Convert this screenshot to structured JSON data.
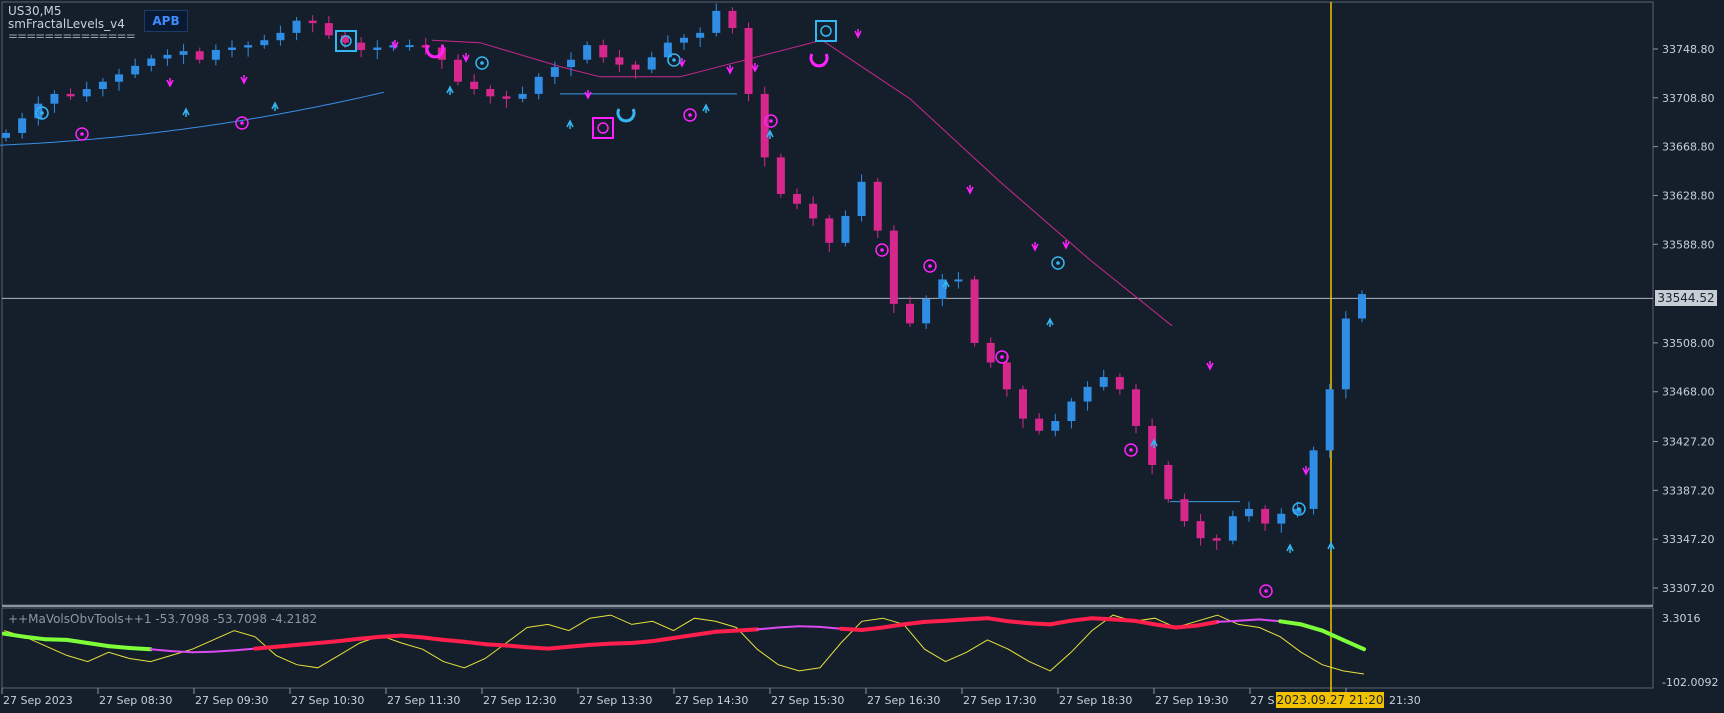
{
  "header": {
    "symbol": "US30,M5",
    "indicator": "smFractalLevels_v4",
    "dashes": "==============",
    "badge": "APB"
  },
  "subwindow": {
    "title": "++MaVolsObvTools++1 -53.7098 -53.7098 -4.2182",
    "axis_top": "3.3016",
    "axis_bottom": "-102.0092"
  },
  "crosshair": {
    "price_label": "33544.52",
    "time_label": "2023.09.27 21:20"
  },
  "colors": {
    "bull": "#2f8de4",
    "bear": "#d6288c",
    "magenta": "#ff22ff",
    "cyan": "#34b6f0",
    "crosshair": "#f2c200"
  },
  "chart_data": {
    "type": "candlestick",
    "symbol": "US30",
    "timeframe": "M5",
    "y_ticks": [
      "33748.80",
      "33708.80",
      "33668.80",
      "33628.80",
      "33588.80",
      "33544.52",
      "33508.00",
      "33468.00",
      "33427.20",
      "33387.20",
      "33347.20",
      "33307.20"
    ],
    "x_ticks": [
      "27 Sep 2023",
      "27 Sep 08:30",
      "27 Sep 09:30",
      "27 Sep 10:30",
      "27 Sep 11:30",
      "27 Sep 12:30",
      "27 Sep 13:30",
      "27 Sep 14:30",
      "27 Sep 15:30",
      "27 Sep 16:30",
      "27 Sep 17:30",
      "27 Sep 18:30",
      "27 Sep 19:30",
      "27 S",
      "21:30"
    ],
    "ylim": [
      33290,
      33778
    ],
    "close_path": [
      33680,
      33692,
      33704,
      33712,
      33710,
      33716,
      33722,
      33728,
      33735,
      33741,
      33744,
      33747,
      33740,
      33748,
      33750,
      33752,
      33756,
      33762,
      33772,
      33770,
      33760,
      33754,
      33748,
      33750,
      33752,
      33752,
      33750,
      33740,
      33722,
      33716,
      33710,
      33708,
      33712,
      33726,
      33734,
      33740,
      33752,
      33742,
      33736,
      33732,
      33742,
      33754,
      33758,
      33762,
      33780,
      33766,
      33712,
      33660,
      33630,
      33622,
      33610,
      33590,
      33612,
      33640,
      33600,
      33540,
      33524,
      33544,
      33560,
      33560,
      33508,
      33492,
      33470,
      33446,
      33436,
      33444,
      33460,
      33472,
      33480,
      33470,
      33440,
      33408,
      33380,
      33362,
      33348,
      33346,
      33366,
      33372,
      33360,
      33368,
      33372,
      33420,
      33470,
      33528,
      33548
    ],
    "slow_ma": {
      "x_range": [
        0,
        387
      ],
      "y_range": [
        33670,
        33714
      ],
      "color": "#3a8ee6"
    },
    "fractal_ma": {
      "points": [
        [
          432,
          33756
        ],
        [
          480,
          33754
        ],
        [
          562,
          33734
        ],
        [
          600,
          33726
        ],
        [
          680,
          33726
        ],
        [
          822,
          33756
        ],
        [
          910,
          33708
        ],
        [
          1000,
          33640
        ],
        [
          1090,
          33576
        ],
        [
          1172,
          33522
        ]
      ],
      "color": "#c7288c"
    },
    "support_levels": [
      {
        "from": 560,
        "to": 737,
        "price": 33712
      },
      {
        "from": 1170,
        "to": 1240,
        "price": 33378
      }
    ],
    "ind_thick": [
      0.65,
      0.6,
      0.56,
      0.55,
      0.5,
      0.45,
      0.42,
      0.4,
      0.37,
      0.35,
      0.36,
      0.38,
      0.41,
      0.44,
      0.47,
      0.5,
      0.53,
      0.57,
      0.6,
      0.62,
      0.59,
      0.55,
      0.52,
      0.48,
      0.46,
      0.43,
      0.41,
      0.44,
      0.47,
      0.49,
      0.5,
      0.53,
      0.58,
      0.63,
      0.68,
      0.7,
      0.72,
      0.75,
      0.77,
      0.76,
      0.73,
      0.71,
      0.75,
      0.8,
      0.84,
      0.86,
      0.88,
      0.9,
      0.85,
      0.82,
      0.8,
      0.86,
      0.9,
      0.88,
      0.86,
      0.8,
      0.75,
      0.78,
      0.84,
      0.86,
      0.88,
      0.85,
      0.8,
      0.7,
      0.55,
      0.4
    ],
    "ind_thin": [
      0.7,
      0.6,
      0.45,
      0.3,
      0.2,
      0.35,
      0.25,
      0.2,
      0.3,
      0.4,
      0.55,
      0.7,
      0.6,
      0.3,
      0.15,
      0.1,
      0.3,
      0.5,
      0.62,
      0.5,
      0.4,
      0.2,
      0.1,
      0.25,
      0.5,
      0.75,
      0.8,
      0.7,
      0.9,
      0.95,
      0.8,
      0.85,
      0.7,
      0.9,
      0.85,
      0.75,
      0.4,
      0.15,
      0.05,
      0.1,
      0.5,
      0.85,
      0.9,
      0.8,
      0.4,
      0.2,
      0.35,
      0.55,
      0.4,
      0.2,
      0.05,
      0.35,
      0.7,
      0.95,
      0.85,
      0.9,
      0.75,
      0.85,
      0.95,
      0.8,
      0.75,
      0.6,
      0.35,
      0.15,
      0.05,
      0.0
    ],
    "ind_colors_note": "green → magenta → red → magenta → green"
  }
}
